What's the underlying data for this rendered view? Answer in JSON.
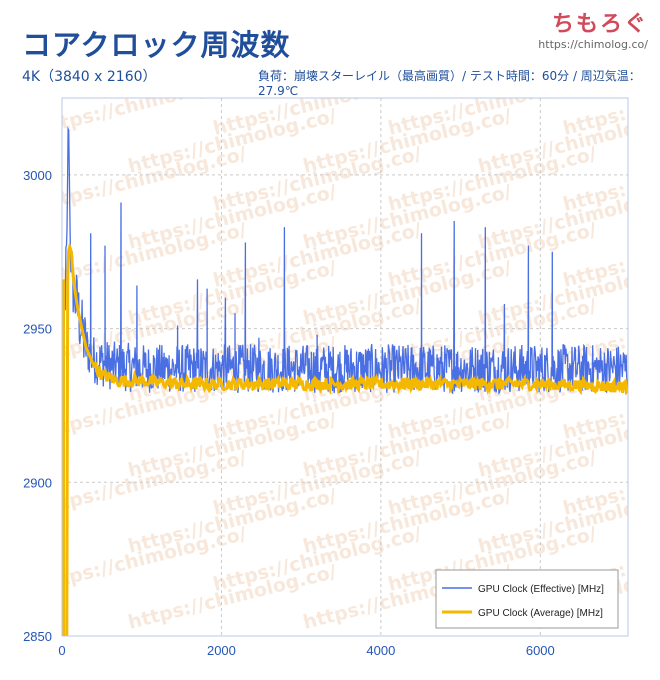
{
  "header": {
    "title": "コアクロック周波数",
    "subtitle_left": "4K（3840 x 2160）",
    "subtitle_right": "負荷：崩壊スターレイル（最高画質）/ テスト時間：60分 / 周辺気温：27.9℃"
  },
  "brand": {
    "name": "ちもろぐ",
    "url": "https://chimolog.co/",
    "color": "#d04a5a"
  },
  "watermark_text": "https://chimolog.co/",
  "chart_data": {
    "type": "line",
    "title": "",
    "xlabel": "",
    "ylabel": "",
    "xlim": [
      0,
      7100
    ],
    "ylim": [
      2850,
      3025
    ],
    "x_ticks": [
      0,
      2000,
      4000,
      6000
    ],
    "y_ticks": [
      2850,
      2900,
      2950,
      3000
    ],
    "grid": true,
    "legend_position": "bottom-right",
    "series": [
      {
        "name": "GPU Clock (Effective) [MHz]",
        "color": "#4a6fe3",
        "x": [
          0,
          40,
          60,
          80,
          100,
          120,
          150,
          200,
          250,
          300,
          400,
          600,
          1000,
          1500,
          2000,
          3000,
          4000,
          5000,
          6000,
          7100
        ],
        "y": [
          2932,
          2962,
          2975,
          3022,
          2985,
          2968,
          2962,
          2956,
          2949,
          2944,
          2940,
          2938,
          2937,
          2937,
          2937,
          2937,
          2937,
          2937,
          2937,
          2937
        ],
        "spikes_x": [
          360,
          540,
          740,
          940,
          1450,
          1700,
          1820,
          2050,
          2170,
          2300,
          2470,
          2790,
          3200,
          4510,
          4920,
          5310,
          5550,
          5850,
          6150
        ],
        "spikes_y": [
          2981,
          2977,
          2991,
          2964,
          2951,
          2966,
          2963,
          2960,
          2955,
          2978,
          2947,
          2983,
          2948,
          2981,
          2985,
          2983,
          2958,
          2977,
          2975
        ],
        "noise_amplitude": 8
      },
      {
        "name": "GPU Clock (Average) [MHz]",
        "color": "#f5b800",
        "x": [
          0,
          60,
          70,
          80,
          100,
          120,
          140,
          170,
          200,
          250,
          300,
          400,
          500,
          700,
          1000,
          1500,
          2000,
          3000,
          4000,
          5000,
          6000,
          7100
        ],
        "y": [
          2850,
          2850,
          2964,
          2975,
          2977,
          2974,
          2967,
          2961,
          2956,
          2950,
          2944,
          2938,
          2935,
          2933,
          2933,
          2932,
          2932,
          2932,
          2932,
          2932,
          2932,
          2931
        ],
        "noise_amplitude": 2
      }
    ]
  }
}
